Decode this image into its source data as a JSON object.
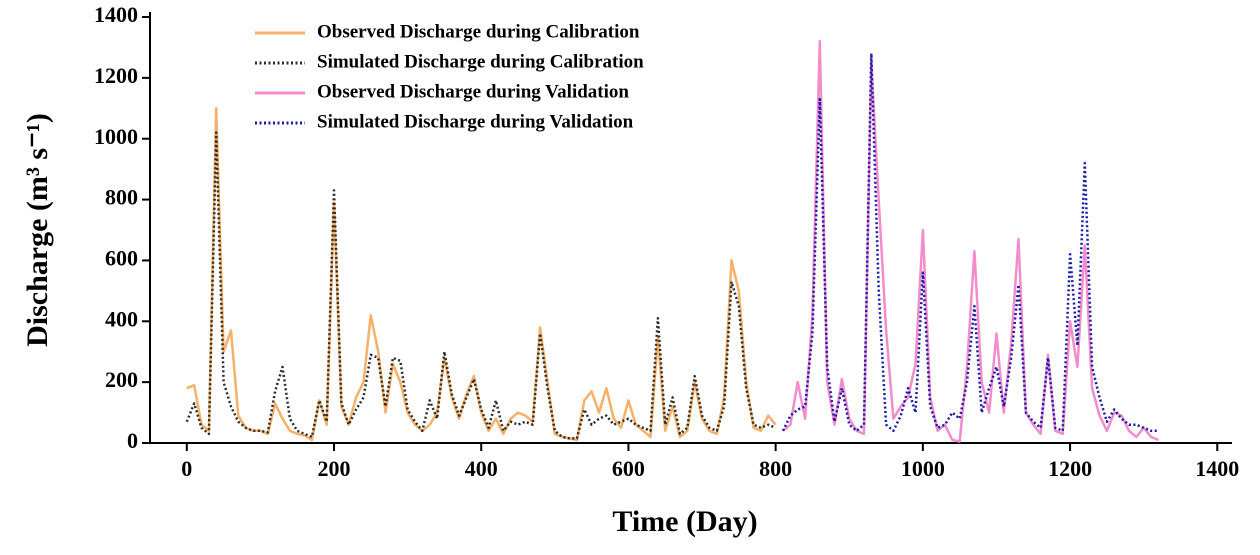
{
  "chart_data": {
    "type": "line",
    "x_label": "Time (Day)",
    "y_label": "Discharge (m³ s⁻¹)",
    "xlim": [
      -50,
      1420
    ],
    "ylim": [
      0,
      1400
    ],
    "xticks": [
      0,
      200,
      400,
      600,
      800,
      1000,
      1200,
      1400
    ],
    "yticks": [
      0,
      200,
      400,
      600,
      800,
      1000,
      1200,
      1400
    ],
    "legend": "upper-left",
    "series": [
      {
        "name": "Observed Discharge during Calibration",
        "color": "#f5b06a",
        "style": "solid",
        "x": [
          0,
          10,
          20,
          30,
          40,
          50,
          60,
          70,
          80,
          90,
          100,
          110,
          120,
          130,
          140,
          150,
          160,
          170,
          180,
          190,
          200,
          210,
          220,
          230,
          240,
          250,
          260,
          270,
          280,
          290,
          300,
          310,
          320,
          330,
          340,
          350,
          360,
          370,
          380,
          390,
          400,
          410,
          420,
          430,
          440,
          450,
          460,
          470,
          480,
          490,
          500,
          510,
          520,
          530,
          540,
          550,
          560,
          570,
          580,
          590,
          600,
          610,
          620,
          630,
          640,
          650,
          660,
          670,
          680,
          690,
          700,
          710,
          720,
          730,
          740,
          750,
          760,
          770,
          780,
          790,
          800
        ],
        "values": [
          180,
          190,
          60,
          40,
          1100,
          300,
          370,
          90,
          50,
          40,
          40,
          30,
          130,
          80,
          40,
          30,
          25,
          10,
          140,
          60,
          790,
          120,
          60,
          150,
          200,
          420,
          300,
          100,
          260,
          200,
          100,
          60,
          40,
          60,
          100,
          280,
          150,
          80,
          160,
          220,
          100,
          40,
          80,
          30,
          80,
          100,
          90,
          70,
          380,
          200,
          30,
          20,
          15,
          10,
          140,
          170,
          100,
          180,
          80,
          50,
          140,
          60,
          40,
          20,
          350,
          40,
          120,
          20,
          40,
          200,
          80,
          40,
          30,
          150,
          600,
          500,
          200,
          50,
          40,
          90,
          60
        ]
      },
      {
        "name": "Simulated Discharge during Calibration",
        "color": "#2b2b2b",
        "style": "dotted",
        "x": [
          0,
          10,
          20,
          30,
          40,
          50,
          60,
          70,
          80,
          90,
          100,
          110,
          120,
          130,
          140,
          150,
          160,
          170,
          180,
          190,
          200,
          210,
          220,
          230,
          240,
          250,
          260,
          270,
          280,
          290,
          300,
          310,
          320,
          330,
          340,
          350,
          360,
          370,
          380,
          390,
          400,
          410,
          420,
          430,
          440,
          450,
          460,
          470,
          480,
          490,
          500,
          510,
          520,
          530,
          540,
          550,
          560,
          570,
          580,
          590,
          600,
          610,
          620,
          630,
          640,
          650,
          660,
          670,
          680,
          690,
          700,
          710,
          720,
          730,
          740,
          750,
          760,
          770,
          780,
          790,
          800
        ],
        "values": [
          70,
          130,
          50,
          30,
          1020,
          200,
          120,
          70,
          50,
          40,
          40,
          35,
          170,
          250,
          80,
          40,
          30,
          20,
          140,
          70,
          830,
          130,
          60,
          110,
          150,
          290,
          280,
          120,
          280,
          270,
          110,
          70,
          40,
          140,
          80,
          300,
          160,
          90,
          150,
          210,
          110,
          50,
          140,
          40,
          70,
          60,
          70,
          60,
          360,
          180,
          40,
          20,
          15,
          15,
          110,
          60,
          80,
          90,
          60,
          70,
          80,
          60,
          50,
          40,
          410,
          60,
          150,
          30,
          50,
          220,
          90,
          50,
          40,
          120,
          530,
          450,
          180,
          60,
          50,
          60,
          50
        ]
      },
      {
        "name": "Observed Discharge during Validation",
        "color": "#f28ccb",
        "style": "solid",
        "x": [
          810,
          820,
          830,
          840,
          850,
          860,
          870,
          880,
          890,
          900,
          910,
          920,
          930,
          940,
          950,
          960,
          970,
          980,
          990,
          1000,
          1010,
          1020,
          1030,
          1040,
          1050,
          1060,
          1070,
          1080,
          1090,
          1100,
          1110,
          1120,
          1130,
          1140,
          1150,
          1160,
          1170,
          1180,
          1190,
          1200,
          1210,
          1220,
          1230,
          1240,
          1250,
          1260,
          1270,
          1280,
          1290,
          1300,
          1310,
          1320
        ],
        "values": [
          40,
          60,
          200,
          80,
          420,
          1320,
          200,
          60,
          210,
          80,
          40,
          30,
          1250,
          800,
          370,
          80,
          120,
          150,
          260,
          700,
          150,
          40,
          60,
          10,
          5,
          250,
          630,
          200,
          100,
          360,
          100,
          330,
          670,
          100,
          60,
          30,
          290,
          40,
          30,
          400,
          250,
          650,
          180,
          90,
          40,
          100,
          90,
          40,
          20,
          50,
          20,
          10
        ]
      },
      {
        "name": "Simulated Discharge during Validation",
        "color": "#1a1aa6",
        "style": "dotted",
        "x": [
          810,
          820,
          830,
          840,
          850,
          860,
          870,
          880,
          890,
          900,
          910,
          920,
          930,
          940,
          950,
          960,
          970,
          980,
          990,
          1000,
          1010,
          1020,
          1030,
          1040,
          1050,
          1060,
          1070,
          1080,
          1090,
          1100,
          1110,
          1120,
          1130,
          1140,
          1150,
          1160,
          1170,
          1180,
          1190,
          1200,
          1210,
          1220,
          1230,
          1240,
          1250,
          1260,
          1270,
          1280,
          1290,
          1300,
          1310,
          1320
        ],
        "values": [
          40,
          90,
          110,
          120,
          360,
          1130,
          250,
          70,
          180,
          60,
          40,
          60,
          1280,
          500,
          60,
          40,
          90,
          180,
          100,
          560,
          120,
          50,
          60,
          100,
          80,
          200,
          450,
          100,
          180,
          250,
          120,
          280,
          520,
          100,
          70,
          50,
          280,
          50,
          40,
          620,
          320,
          920,
          250,
          150,
          70,
          110,
          80,
          60,
          60,
          50,
          40,
          40
        ]
      }
    ]
  }
}
